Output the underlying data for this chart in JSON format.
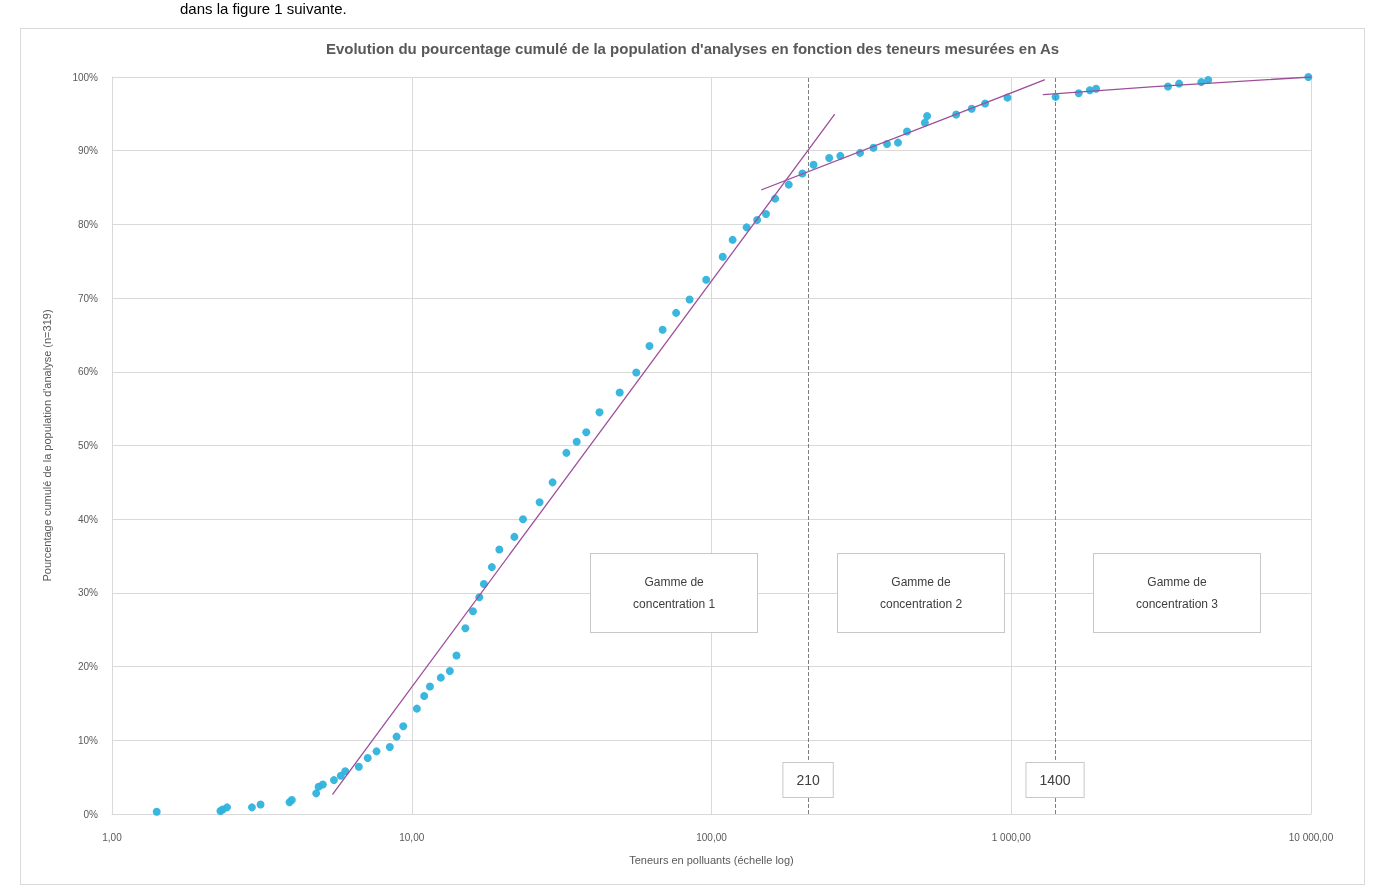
{
  "chart_data": {
    "type": "scatter",
    "title": "Evolution du pourcentage cumulé de la population d'analyses en fonction des teneurs mesurées en As",
    "xlabel": "Teneurs en polluants (échelle log)",
    "ylabel": "Pourcentage cumulé de la population d'analyse (n=319)",
    "log": "x",
    "xlim": [
      1,
      10000
    ],
    "xticks": [
      {
        "value": 1,
        "label": "1,00"
      },
      {
        "value": 10,
        "label": "10,00"
      },
      {
        "value": 100,
        "label": "100,00"
      },
      {
        "value": 1000,
        "label": "1 000,00"
      },
      {
        "value": 10000,
        "label": "10 000,00"
      }
    ],
    "ylim": [
      0,
      100
    ],
    "yticks": [
      {
        "value": 0,
        "label": "0%"
      },
      {
        "value": 10,
        "label": "10%"
      },
      {
        "value": 20,
        "label": "20%"
      },
      {
        "value": 30,
        "label": "30%"
      },
      {
        "value": 40,
        "label": "40%"
      },
      {
        "value": 50,
        "label": "50%"
      },
      {
        "value": 60,
        "label": "60%"
      },
      {
        "value": 70,
        "label": "70%"
      },
      {
        "value": 80,
        "label": "80%"
      },
      {
        "value": 90,
        "label": "90%"
      },
      {
        "value": 100,
        "label": "100%"
      }
    ],
    "grid": true,
    "series": [
      {
        "color": "#2eb3dc",
        "marker": "circle",
        "x": [
          1.41,
          2.3,
          2.34,
          2.42,
          2.93,
          3.13,
          3.91,
          3.98,
          4.8,
          4.89,
          5.05,
          5.5,
          5.8,
          6.0,
          6.66,
          7.13,
          7.63,
          8.45,
          8.9,
          9.37,
          10.4,
          11.0,
          11.5,
          12.5,
          13.4,
          14.1,
          15.1,
          16.0,
          16.8,
          17.4,
          18.5,
          19.6,
          22,
          23.5,
          26.7,
          29.5,
          32.8,
          35.5,
          38.2,
          42.3,
          49.4,
          56.1,
          62.1,
          68.7,
          76.2,
          84.5,
          96,
          109,
          117.6,
          131,
          142,
          152,
          163,
          181,
          201,
          219,
          247,
          269,
          313,
          347,
          385,
          419,
          449,
          515,
          524,
          655,
          738,
          818,
          971,
          1406,
          1679,
          1829,
          1919,
          3333,
          3631,
          4306,
          4540,
          9800
        ],
        "values": [
          0.3,
          0.4,
          0.6,
          0.9,
          0.9,
          1.3,
          1.6,
          1.9,
          2.8,
          3.7,
          4.0,
          4.6,
          5.2,
          5.8,
          6.4,
          7.6,
          8.5,
          9.1,
          10.5,
          11.9,
          14.3,
          16.0,
          17.3,
          18.5,
          19.4,
          21.5,
          25.2,
          27.5,
          29.4,
          31.2,
          33.5,
          35.9,
          37.6,
          40.0,
          42.3,
          45.0,
          49.0,
          50.5,
          51.8,
          54.5,
          57.2,
          59.9,
          63.5,
          65.7,
          68.0,
          69.8,
          72.5,
          75.6,
          77.9,
          79.6,
          80.6,
          81.4,
          83.5,
          85.4,
          86.9,
          88.1,
          89.0,
          89.3,
          89.7,
          90.4,
          90.9,
          91.1,
          92.6,
          93.8,
          94.7,
          94.9,
          95.7,
          96.4,
          97.2,
          97.3,
          97.8,
          98.2,
          98.4,
          98.7,
          99.1,
          99.3,
          99.6,
          100
        ]
      },
      {
        "type": "line",
        "color": "#9e4f9a",
        "marker": "none",
        "line_style": "solid",
        "x": [
          5.45,
          257
        ],
        "values": [
          2.7,
          94.9
        ]
      },
      {
        "type": "line",
        "color": "#9e4f9a",
        "marker": "none",
        "line_style": "solid",
        "x": [
          147,
          1290
        ],
        "values": [
          84.7,
          99.6
        ]
      },
      {
        "type": "line",
        "color": "#9e4f9a",
        "marker": "none",
        "line_style": "solid",
        "x": [
          1279,
          3000,
          10000
        ],
        "values": [
          97.6,
          98.7,
          100
        ]
      }
    ],
    "ref_lines": [
      {
        "axis": "x",
        "value": 210,
        "label": "210",
        "color": "#7f7f7f",
        "line_style": "dashed"
      },
      {
        "axis": "x",
        "value": 1400,
        "label": "1400",
        "color": "#7f7f7f",
        "line_style": "dashed"
      }
    ],
    "annotations": [
      "dans la figure 1 suivante.",
      "Gamme de concentration 1",
      "Gamme de concentration 2",
      "Gamme de concentration 3"
    ]
  }
}
